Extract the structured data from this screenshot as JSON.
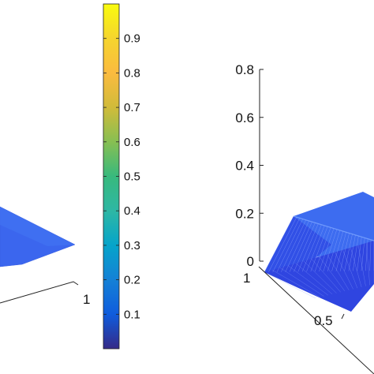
{
  "colorbar": {
    "ticks": [
      "0.1",
      "0.2",
      "0.3",
      "0.4",
      "0.5",
      "0.6",
      "0.7",
      "0.8",
      "0.9"
    ],
    "range": [
      0.0,
      1.0
    ]
  },
  "left_plot": {
    "x_tick_labels": [
      "1"
    ]
  },
  "right_plot": {
    "z_tick_labels": [
      "0",
      "0.2",
      "0.4",
      "0.6",
      "0.8"
    ],
    "z_range": [
      0,
      0.8
    ],
    "y_tick_labels": [
      "1"
    ],
    "x_tick_labels": [
      "0.5"
    ]
  },
  "chart_data": [
    {
      "type": "colorbar",
      "colormap": "parula",
      "min": 0.0,
      "max": 1.0,
      "ticks": [
        0.1,
        0.2,
        0.3,
        0.4,
        0.5,
        0.6,
        0.7,
        0.8,
        0.9
      ]
    },
    {
      "type": "surface",
      "values_approx": 0.3,
      "color": "#3a63ee"
    },
    {
      "type": "surface",
      "z_ticks": [
        0,
        0.2,
        0.4,
        0.6,
        0.8
      ],
      "zlim": [
        0,
        0.8
      ],
      "peak_value_approx": 0.2,
      "color": "#3a63ee"
    }
  ]
}
